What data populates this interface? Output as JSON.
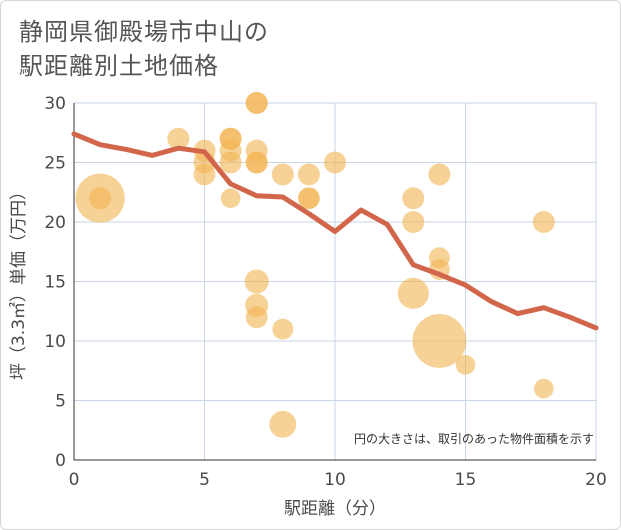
{
  "title_lines": [
    "静岡県御殿場市中山の",
    "駅距離別土地価格"
  ],
  "colors": {
    "bubble": "#f2b451",
    "line": "#d2664b",
    "grid": "#c8d6e6",
    "plot_bg": "#ffffff"
  },
  "chart_data": {
    "type": "scatter",
    "title": "静岡県御殿場市中山の駅距離別土地価格",
    "xlabel": "駅距離（分）",
    "ylabel": "坪（3.3㎡）単価（万円）",
    "xlim": [
      0,
      20
    ],
    "ylim": [
      0,
      30
    ],
    "xticks": [
      0,
      5,
      10,
      15,
      20
    ],
    "yticks": [
      0,
      5,
      10,
      15,
      20,
      25,
      30
    ],
    "note": "円の大きさは、取引のあった物件面積を示す",
    "scatter": [
      {
        "x": 1,
        "y": 22,
        "size": 5
      },
      {
        "x": 1,
        "y": 22,
        "size": 1
      },
      {
        "x": 4,
        "y": 27,
        "size": 1
      },
      {
        "x": 5,
        "y": 26,
        "size": 1
      },
      {
        "x": 5,
        "y": 25,
        "size": 1
      },
      {
        "x": 5,
        "y": 24,
        "size": 1
      },
      {
        "x": 6,
        "y": 27,
        "size": 1
      },
      {
        "x": 6,
        "y": 27,
        "size": 1
      },
      {
        "x": 6,
        "y": 26,
        "size": 1
      },
      {
        "x": 6,
        "y": 25,
        "size": 1
      },
      {
        "x": 6,
        "y": 22,
        "size": 0.8
      },
      {
        "x": 7,
        "y": 30,
        "size": 1
      },
      {
        "x": 7,
        "y": 30,
        "size": 1
      },
      {
        "x": 7,
        "y": 26,
        "size": 1
      },
      {
        "x": 7,
        "y": 25,
        "size": 1
      },
      {
        "x": 7,
        "y": 25,
        "size": 1
      },
      {
        "x": 7,
        "y": 15,
        "size": 1.2
      },
      {
        "x": 7,
        "y": 13,
        "size": 1.1
      },
      {
        "x": 7,
        "y": 12,
        "size": 1
      },
      {
        "x": 8,
        "y": 24,
        "size": 1
      },
      {
        "x": 8,
        "y": 11,
        "size": 0.9
      },
      {
        "x": 8,
        "y": 3,
        "size": 1.5
      },
      {
        "x": 9,
        "y": 24,
        "size": 1
      },
      {
        "x": 9,
        "y": 22,
        "size": 1
      },
      {
        "x": 9,
        "y": 22,
        "size": 0.9
      },
      {
        "x": 10,
        "y": 25,
        "size": 1
      },
      {
        "x": 13,
        "y": 22,
        "size": 1
      },
      {
        "x": 13,
        "y": 20,
        "size": 1
      },
      {
        "x": 13,
        "y": 14,
        "size": 2
      },
      {
        "x": 14,
        "y": 24,
        "size": 1
      },
      {
        "x": 14,
        "y": 17,
        "size": 0.9
      },
      {
        "x": 14,
        "y": 16,
        "size": 0.9
      },
      {
        "x": 14,
        "y": 10,
        "size": 6
      },
      {
        "x": 15,
        "y": 8,
        "size": 0.8
      },
      {
        "x": 18,
        "y": 20,
        "size": 1
      },
      {
        "x": 18,
        "y": 6,
        "size": 0.8
      }
    ],
    "trend_line": {
      "x": [
        0,
        1,
        2,
        3,
        4,
        5,
        6,
        7,
        8,
        9,
        10,
        11,
        12,
        13,
        14,
        15,
        16,
        17,
        18,
        19,
        20
      ],
      "y": [
        27.4,
        26.5,
        26.1,
        25.6,
        26.2,
        25.9,
        23.2,
        22.2,
        22.1,
        20.7,
        19.2,
        21.0,
        19.8,
        16.4,
        15.6,
        14.7,
        13.3,
        12.3,
        12.8,
        12.0,
        11.1
      ]
    }
  }
}
